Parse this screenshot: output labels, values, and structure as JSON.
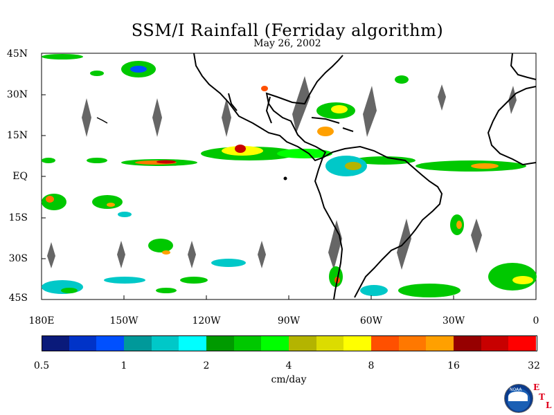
{
  "title": "SSM/I Rainfall (Ferriday algorithm)",
  "subtitle": "May 26, 2002",
  "lat_labels": [
    "45N",
    "30N",
    "15N",
    "EQ",
    "15S",
    "30S",
    "45S"
  ],
  "lon_labels": [
    "180E",
    "150W",
    "120W",
    "90W",
    "60W",
    "30W",
    "0"
  ],
  "colorbar": {
    "tick_labels": [
      "0.5",
      "1",
      "2",
      "4",
      "8",
      "16",
      "32"
    ],
    "units": "cm/day",
    "colors": [
      "#0a1a7a",
      "#0033c8",
      "#0050ff",
      "#00999a",
      "#00c8c8",
      "#00ffff",
      "#009a00",
      "#00c800",
      "#00ff00",
      "#b4b400",
      "#dcdc00",
      "#ffff00",
      "#ff5000",
      "#ff7800",
      "#ffa000",
      "#960000",
      "#c80000",
      "#ff0000"
    ]
  },
  "logo": {
    "text": "NOAA",
    "etl_letters": [
      "E",
      "T",
      "L"
    ]
  }
}
